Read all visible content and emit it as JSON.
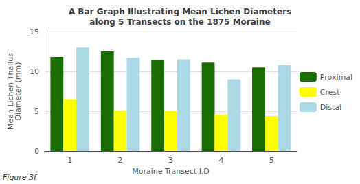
{
  "chart_data": {
    "type": "bar",
    "title": "A Bar Graph Illustrating Mean Lichen Diameters\nalong 5 Transects on the 1875 Moraine",
    "x_label": "Moraine Transect I.D",
    "y_label": "Mean Lichen Thallus\nDiameter (mm)",
    "annotations": [
      "Figure 3f"
    ],
    "categories": [
      "1",
      "2",
      "3",
      "4",
      "5"
    ],
    "series": [
      {
        "name": "Proximal",
        "color": "#1a6e00",
        "values": [
          11.8,
          12.5,
          11.4,
          11.1,
          10.5
        ]
      },
      {
        "name": "Crest",
        "color": "#ffff00",
        "values": [
          6.5,
          5.1,
          5.0,
          4.6,
          4.4
        ]
      },
      {
        "name": "Distal",
        "color": "#add8e6",
        "values": [
          13.0,
          11.7,
          11.5,
          9.0,
          10.8
        ]
      }
    ],
    "ylim": [
      0,
      15
    ],
    "yticks": [
      0,
      5,
      10,
      15
    ],
    "grid": true,
    "legend": "right"
  }
}
